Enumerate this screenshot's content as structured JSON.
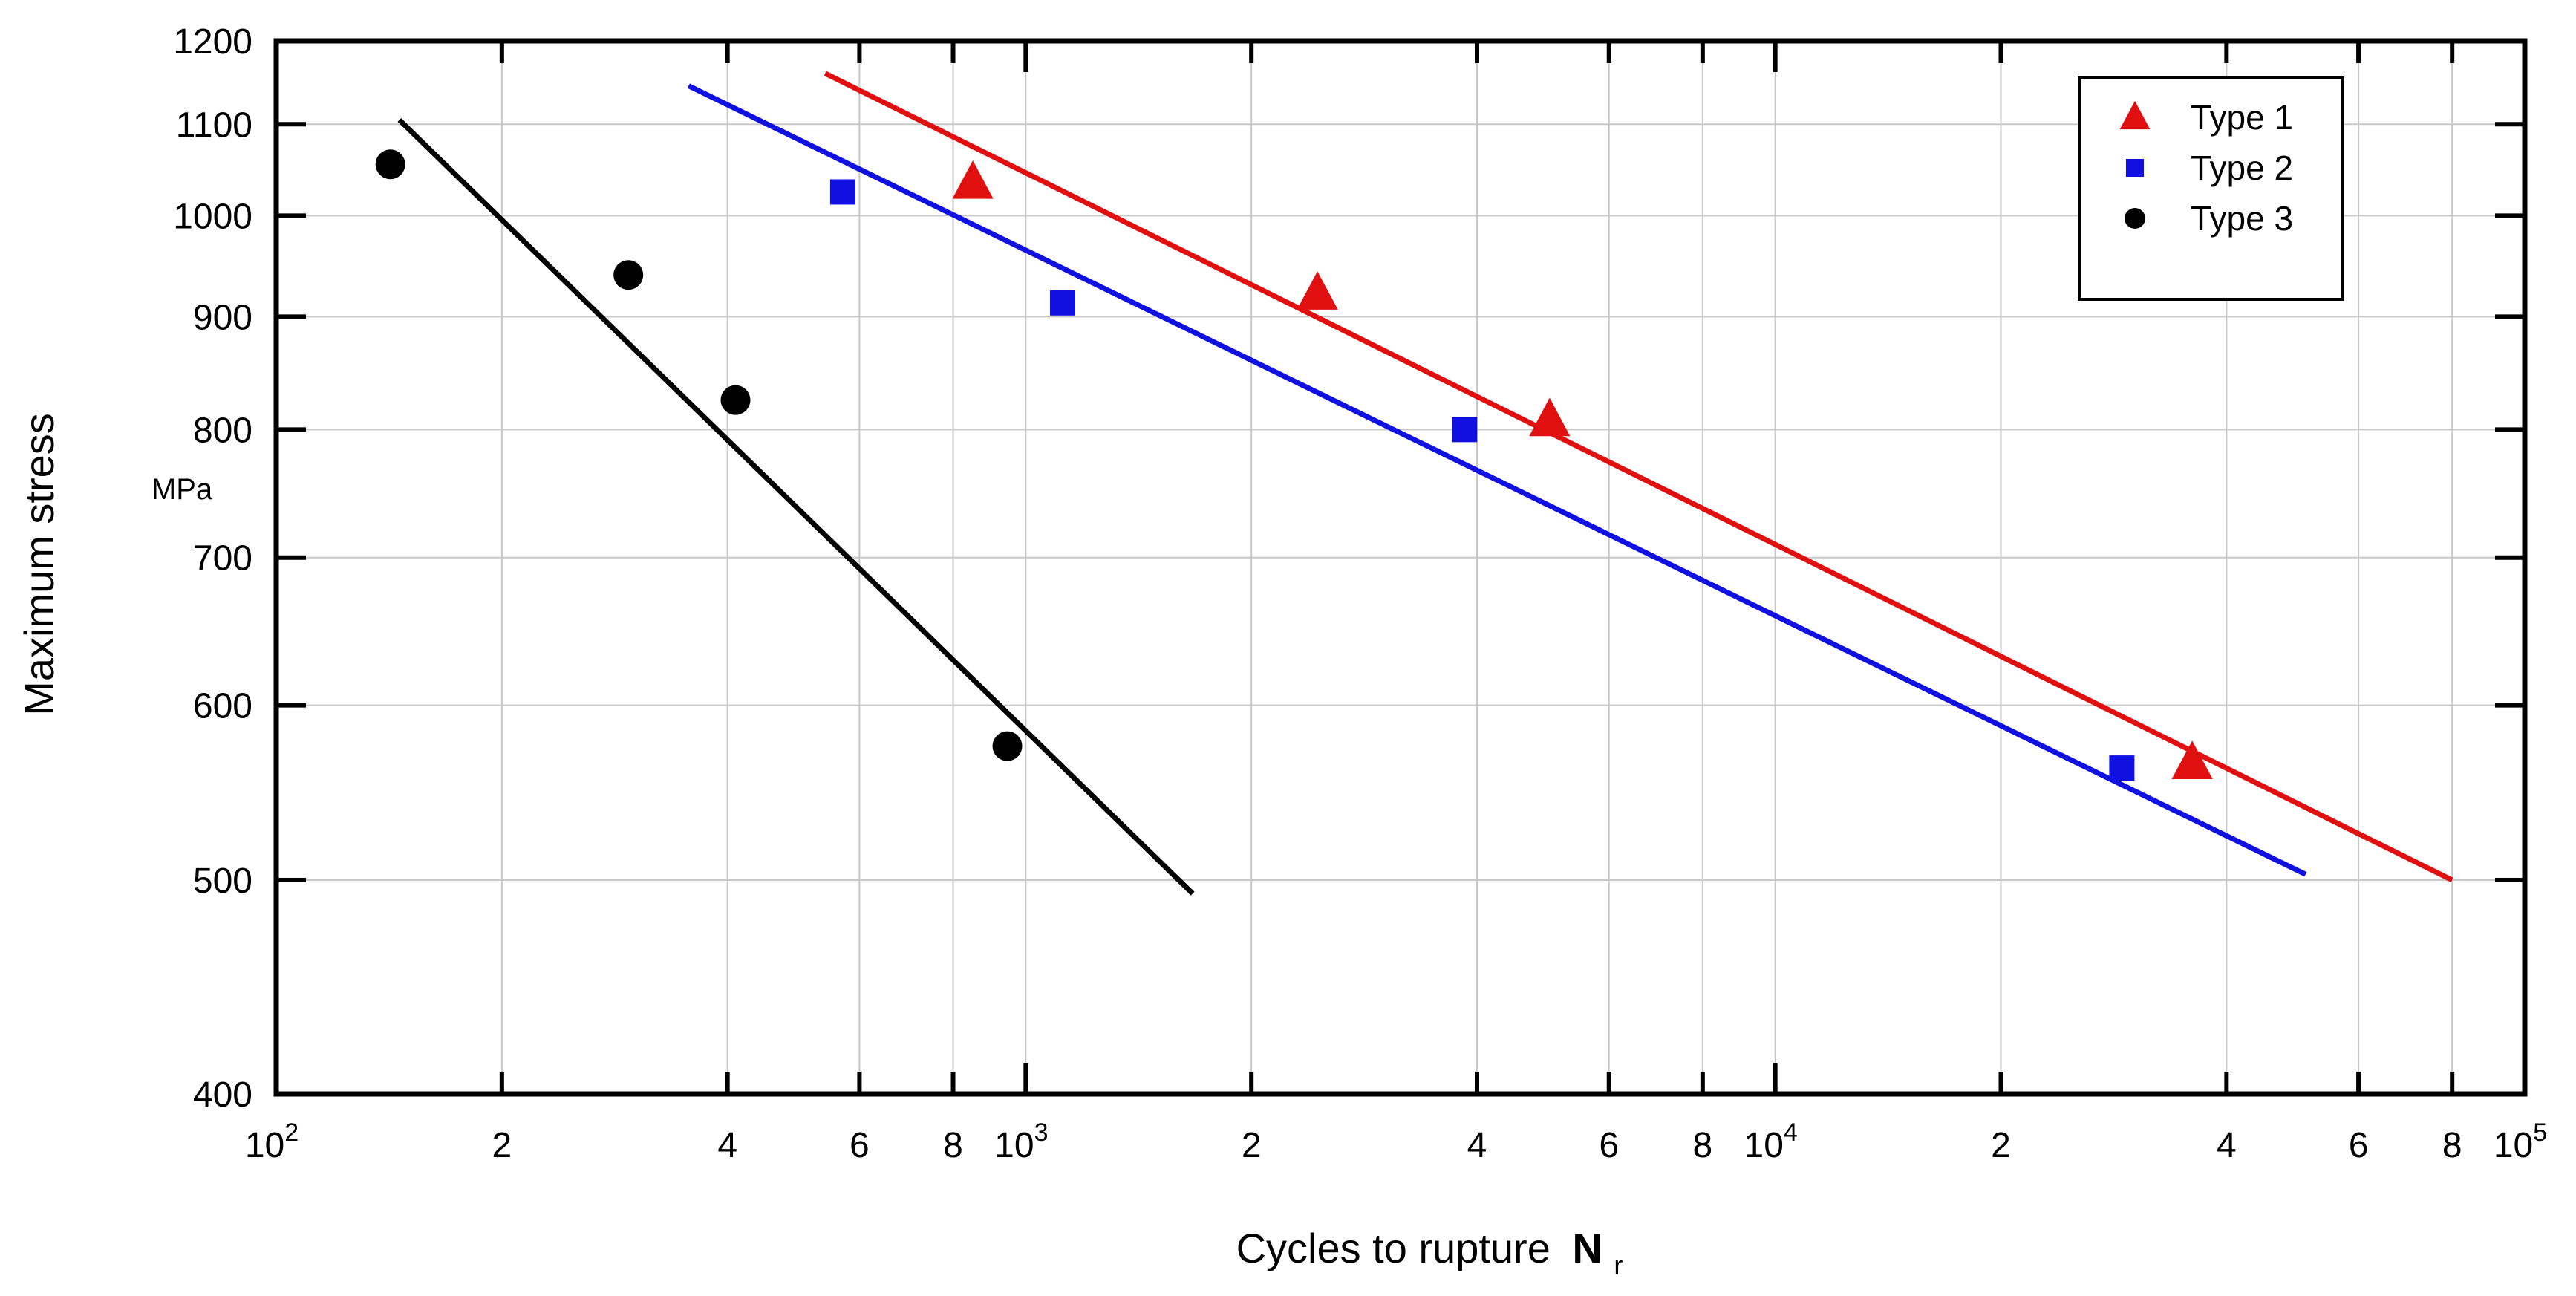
{
  "chart_data": {
    "type": "scatter",
    "title": "",
    "xlabel": "Cycles to rupture",
    "xlabel_symbol": "N",
    "xlabel_subscript": "r",
    "ylabel": "Maximum stress",
    "yunit": "MPa",
    "xscale": "log",
    "yscale": "log",
    "xlim": [
      100,
      100000
    ],
    "ylim": [
      400,
      1200
    ],
    "grid": true,
    "legend": "top-right",
    "colors": {
      "type1": "#e01010",
      "type2": "#1010e0",
      "type3": "#000000"
    },
    "y_ticks": [
      {
        "value": 400,
        "label": "400"
      },
      {
        "value": 500,
        "label": "500"
      },
      {
        "value": 600,
        "label": "600"
      },
      {
        "value": 700,
        "label": "700"
      },
      {
        "value": 800,
        "label": "800"
      },
      {
        "value": 900,
        "label": "900"
      },
      {
        "value": 1000,
        "label": "1000"
      },
      {
        "value": 1100,
        "label": "1100"
      },
      {
        "value": 1200,
        "label": "1200"
      }
    ],
    "x_ticks": [
      {
        "value": 100,
        "base": "10",
        "exp": "2"
      },
      {
        "value": 200,
        "base": "2",
        "exp": ""
      },
      {
        "value": 400,
        "base": "4",
        "exp": ""
      },
      {
        "value": 600,
        "base": "6",
        "exp": ""
      },
      {
        "value": 800,
        "base": "8",
        "exp": ""
      },
      {
        "value": 1000,
        "base": "10",
        "exp": "3"
      },
      {
        "value": 2000,
        "base": "2",
        "exp": ""
      },
      {
        "value": 4000,
        "base": "4",
        "exp": ""
      },
      {
        "value": 6000,
        "base": "6",
        "exp": ""
      },
      {
        "value": 8000,
        "base": "8",
        "exp": ""
      },
      {
        "value": 10000,
        "base": "10",
        "exp": "4"
      },
      {
        "value": 20000,
        "base": "2",
        "exp": ""
      },
      {
        "value": 40000,
        "base": "4",
        "exp": ""
      },
      {
        "value": 60000,
        "base": "6",
        "exp": ""
      },
      {
        "value": 80000,
        "base": "8",
        "exp": ""
      },
      {
        "value": 100000,
        "base": "10",
        "exp": "5"
      }
    ],
    "series": [
      {
        "name": "Type 1",
        "key": "type1",
        "marker": "triangle",
        "points": [
          [
            850,
            1035
          ],
          [
            2450,
            922
          ],
          [
            5000,
            808
          ],
          [
            36000,
            565
          ]
        ],
        "fit_line": [
          [
            540,
            1160
          ],
          [
            80000,
            500
          ]
        ]
      },
      {
        "name": "Type 2",
        "key": "type2",
        "marker": "square",
        "points": [
          [
            570,
            1025
          ],
          [
            1120,
            913
          ],
          [
            3850,
            800
          ],
          [
            29000,
            562
          ]
        ],
        "fit_line": [
          [
            355,
            1145
          ],
          [
            51000,
            503
          ]
        ]
      },
      {
        "name": "Type 3",
        "key": "type3",
        "marker": "circle",
        "points": [
          [
            142,
            1055
          ],
          [
            295,
            940
          ],
          [
            410,
            825
          ],
          [
            945,
            575
          ]
        ],
        "fit_line": [
          [
            146,
            1105
          ],
          [
            1670,
            493
          ]
        ]
      }
    ]
  }
}
